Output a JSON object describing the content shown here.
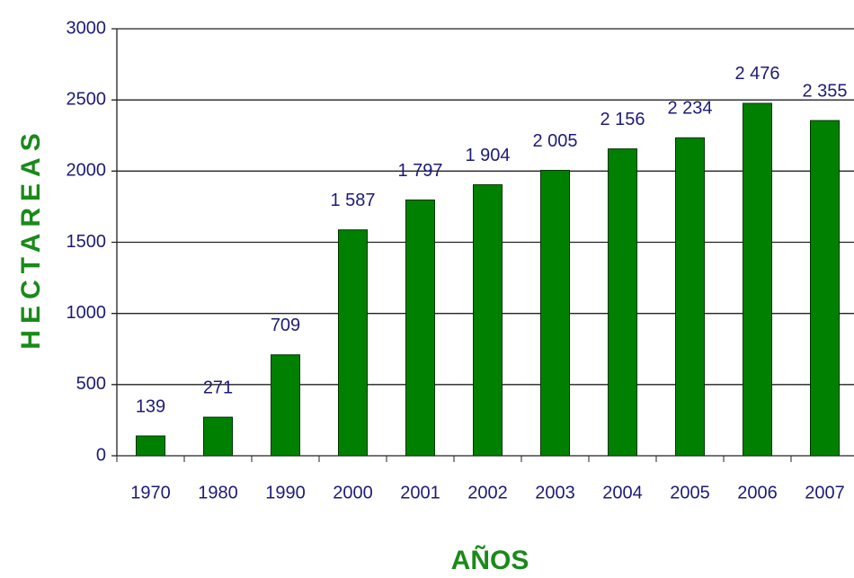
{
  "chart_data": {
    "type": "bar",
    "categories": [
      "1970",
      "1980",
      "1990",
      "2000",
      "2001",
      "2002",
      "2003",
      "2004",
      "2005",
      "2006",
      "2007"
    ],
    "values": [
      139,
      271,
      709,
      1587,
      1797,
      1904,
      2005,
      2156,
      2234,
      2476,
      2355
    ],
    "value_labels": [
      "139",
      "271",
      "709",
      "1 587",
      "1 797",
      "1 904",
      "2 005",
      "2 156",
      "2 234",
      "2 476",
      "2 355"
    ],
    "color": "#008000",
    "ylim": [
      0,
      3000
    ],
    "yticks": [
      0,
      500,
      1000,
      1500,
      2000,
      2500,
      3000
    ],
    "grid": true,
    "y_label": "HECTAREAS",
    "x_label": "AÑOS"
  }
}
